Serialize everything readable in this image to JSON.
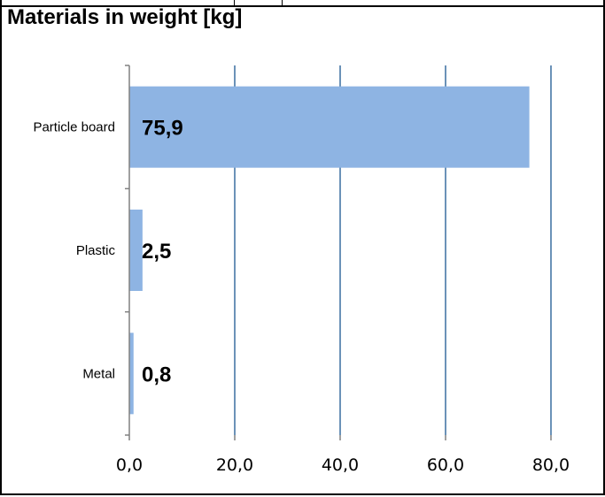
{
  "chart_data": {
    "type": "bar",
    "orientation": "horizontal",
    "title": "Materials in weight [kg]",
    "categories": [
      "Particle board",
      "Plastic",
      "Metal"
    ],
    "values": [
      75.9,
      2.5,
      0.8
    ],
    "data_labels": [
      "75,9",
      "2,5",
      "0,8"
    ],
    "xlim": [
      0,
      80
    ],
    "ticks": [
      0,
      20,
      40,
      60,
      80
    ],
    "tick_labels": [
      "0,0",
      "20,0",
      "40,0",
      "60,0",
      "80,0"
    ],
    "grid": "vertical",
    "legend": "none",
    "xlabel": "",
    "ylabel": "",
    "bar_color": "#8eb4e3",
    "grid_color": "#3a6fa0"
  }
}
